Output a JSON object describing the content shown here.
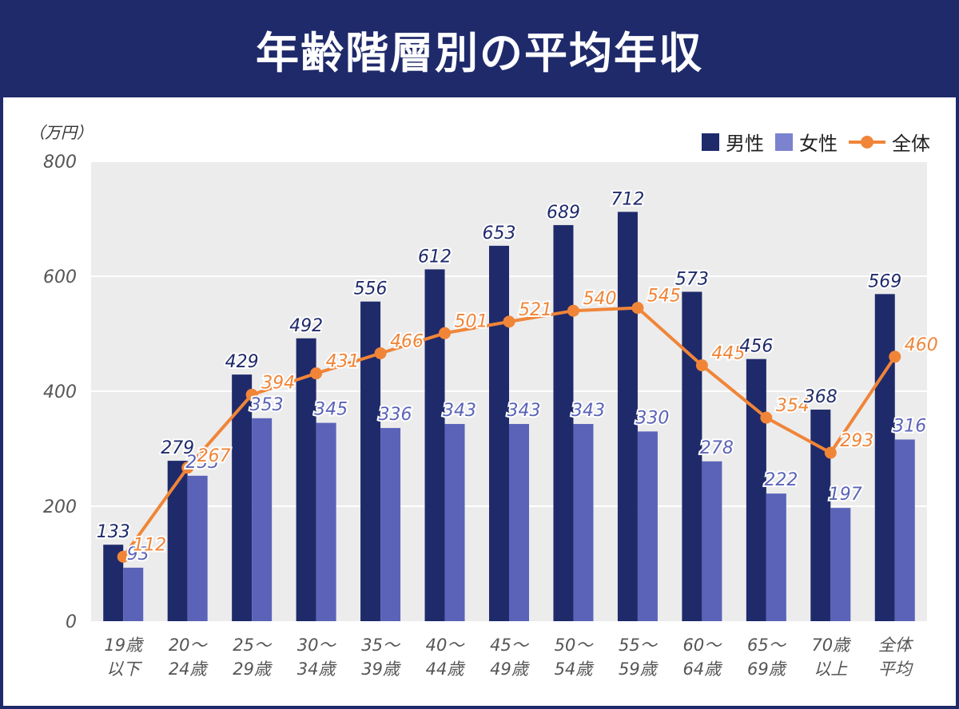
{
  "title": "年齢階層別の平均年収",
  "unit": "（万円）",
  "legend": {
    "male": "男性",
    "female": "女性",
    "total": "全体"
  },
  "colors": {
    "male": "#1f2a6b",
    "female": "#5b63b8",
    "total": "#f08538",
    "plot_bg": "#ececec",
    "male_label": "#1f2a6b",
    "female_label": "#5b63b8",
    "total_label": "#f08538",
    "tick_text": "#555555"
  },
  "chart_data": {
    "type": "bar",
    "categories": [
      [
        "19歳",
        "以下"
      ],
      [
        "20～",
        "24歳"
      ],
      [
        "25～",
        "29歳"
      ],
      [
        "30～",
        "34歳"
      ],
      [
        "35～",
        "39歳"
      ],
      [
        "40～",
        "44歳"
      ],
      [
        "45～",
        "49歳"
      ],
      [
        "50～",
        "54歳"
      ],
      [
        "55～",
        "59歳"
      ],
      [
        "60～",
        "64歳"
      ],
      [
        "65～",
        "69歳"
      ],
      [
        "70歳",
        "以上"
      ],
      [
        "全体",
        "平均"
      ]
    ],
    "series": [
      {
        "name": "男性",
        "kind": "bar",
        "values": [
          133,
          279,
          429,
          492,
          556,
          612,
          653,
          689,
          712,
          573,
          456,
          368,
          569
        ]
      },
      {
        "name": "女性",
        "kind": "bar",
        "values": [
          93,
          253,
          353,
          345,
          336,
          343,
          343,
          343,
          330,
          278,
          222,
          197,
          316
        ]
      },
      {
        "name": "全体",
        "kind": "line",
        "values": [
          112,
          267,
          394,
          431,
          466,
          501,
          521,
          540,
          545,
          445,
          354,
          293,
          460
        ]
      }
    ],
    "ylim": [
      0,
      800
    ],
    "yticks": [
      0,
      200,
      400,
      600,
      800
    ],
    "grid": true,
    "legend_position": "top-right"
  }
}
